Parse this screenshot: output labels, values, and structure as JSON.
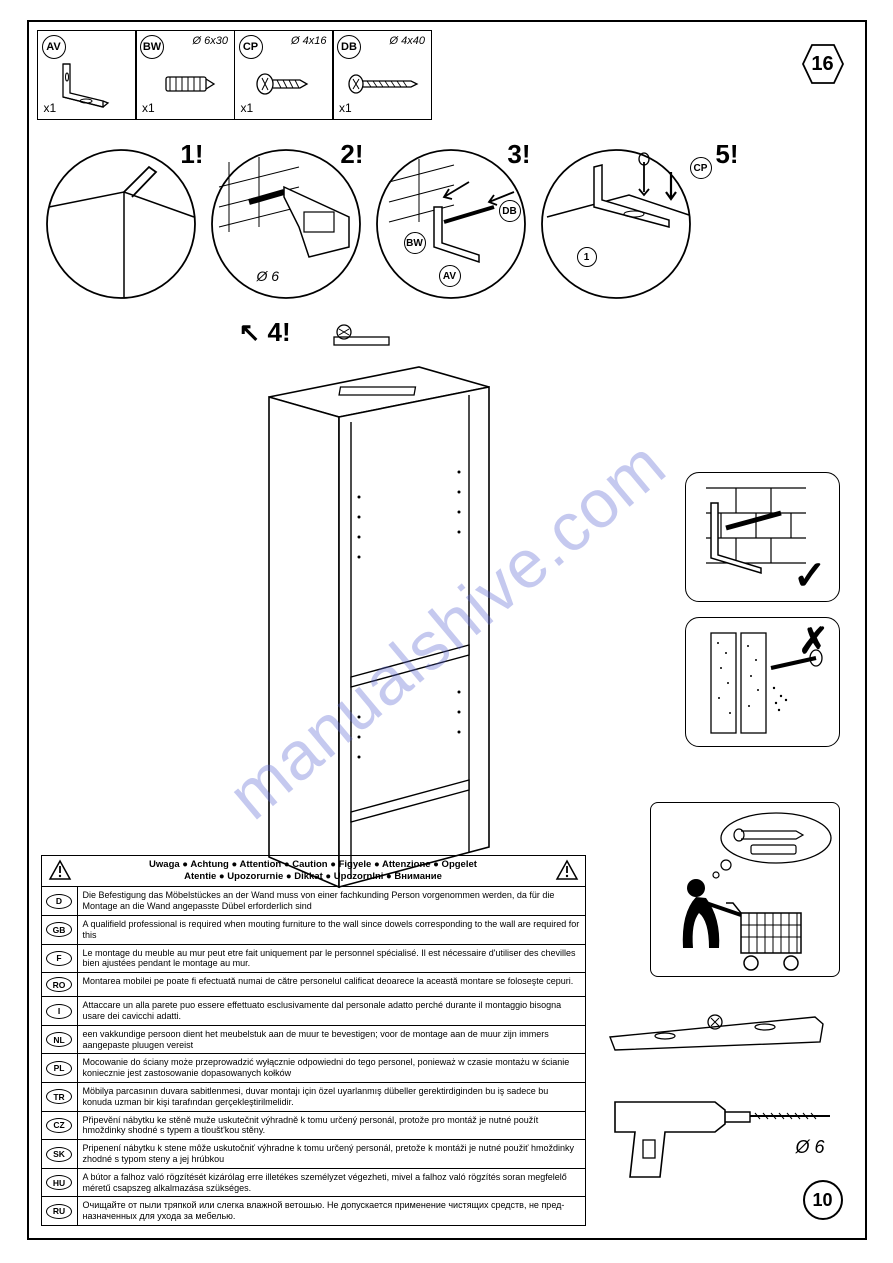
{
  "step_number": "16",
  "page_number": "10",
  "watermark": "manualshive.com",
  "parts": [
    {
      "tag": "AV",
      "dim": "",
      "qty": "x1"
    },
    {
      "tag": "BW",
      "dim": "Ø 6x30",
      "qty": "x1"
    },
    {
      "tag": "CP",
      "dim": "Ø 4x16",
      "qty": "x1"
    },
    {
      "tag": "DB",
      "dim": "Ø 4x40",
      "qty": "x1"
    }
  ],
  "steps": {
    "s1": "1!",
    "s2": "2!",
    "s3": "3!",
    "s4": "4!",
    "s5": "5!",
    "drill_diam": "Ø 6"
  },
  "step3_tags": {
    "bw": "BW",
    "av": "AV",
    "db": "DB"
  },
  "step5_tags": {
    "cp": "CP",
    "one": "1"
  },
  "drill_bottom_dim": "Ø 6",
  "warning_header_line1": "Uwaga ● Achtung ● Attention ● Caution ● Figyele ● Attenzione ● Opgelet",
  "warning_header_line2": "Atentie ● Upozorurnie ● Dikkat ● Upozornlni ● Внимание",
  "lang_rows": [
    {
      "code": "D",
      "text": "Die Befestigung das Möbelstückes an der Wand muss von einer fachkunding Person vorgenommen werden, da für die Montage an die Wand angepasste Dübel erforderlich sind"
    },
    {
      "code": "GB",
      "text": "A qualifield professional is required when mouting furniture to the wall since dowels corresponding to the wall are required for this"
    },
    {
      "code": "F",
      "text": "Le montage du meuble au mur peut etre fait uniquement par le personnel spécialisé. Il est nécessaire d'utiliser des chevilles bien ajustées pendant le montage au mur."
    },
    {
      "code": "RO",
      "text": "Montarea mobilei pe poate fi efectuată numai de către personelul calificat deoarece la această montare se foloseşte cepuri."
    },
    {
      "code": "I",
      "text": "Attaccare un alla parete puo essere effettuato esclusivamente dal personale adatto perché durante il montaggio bisogna usare dei cavicchi adatti."
    },
    {
      "code": "NL",
      "text": "een vakkundige persoon dient het meubelstuk aan de muur te bevestigen; voor de montage aan de muur zijn immers aangepaste pluugen vereist"
    },
    {
      "code": "PL",
      "text": "Mocowanie do ściany może przeprowadzić wyłącznie odpowiedni do tego personel, ponieważ w czasie montażu w ścianie koniecznie jest zastosowanie dopasowanych kołków"
    },
    {
      "code": "TR",
      "text": "Möbilya parcasının duvara sabitlenmesi, duvar montajı için özel uyarlanmış dübeller gerektirdiginden bu iş sadece bu konuda uzman bir kişi tarafından gerçekleştirilmelidir."
    },
    {
      "code": "CZ",
      "text": "Připevění nábytku ke stěně muže uskutečnit výhradně k tomu určený personál, protože pro montáž je nutné použít hmoždinky shodné s typem a tloušt'kou stěny."
    },
    {
      "code": "SK",
      "text": "Pripenení nábytku k stene môže uskutočniť výhradne k tomu určený personál, pretože k montáži je nutné použiť hmoždinky zhodné s typom steny a jej hrúbkou"
    },
    {
      "code": "HU",
      "text": "A bútor a falhoz való rögzítését kizárólag erre illetékes személyzet végezheti, mivel a falhoz való rögzítés soran megfelelő méretű csapszeg alkalmazása szükséges."
    },
    {
      "code": "RU",
      "text": "Очищайте от пыли тряпкой или слегка влажной ветошью. Не допускается применение чистящих средств, не пред-назначенных для ухода за мебелью."
    }
  ]
}
